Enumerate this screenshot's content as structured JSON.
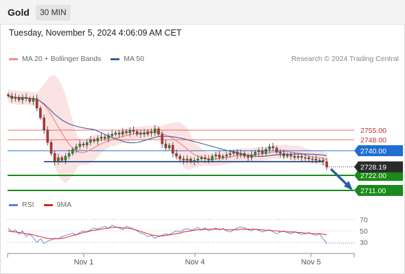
{
  "header": {
    "symbol": "Gold",
    "interval": "30 MIN"
  },
  "timestamp": "Tuesday, November 5, 2024 4:06:09 AM CET",
  "legend": {
    "ma20_label": "MA 20 + Bollinger Bands",
    "ma50_label": "MA 50",
    "ma20_color": "#f08a8a",
    "ma50_color": "#3a5f96",
    "credit": "Research © 2024 Trading Central"
  },
  "rsi_legend": {
    "rsi_label": "RSI",
    "ma_label": "9MA",
    "rsi_color": "#5b7fd6",
    "ma_color": "#e02020"
  },
  "chart_data": [
    {
      "type": "candlestick",
      "x_ticks": [
        "Nov 1",
        "Nov 4",
        "Nov 5"
      ],
      "y_range": [
        2705,
        2800
      ],
      "last_price": 2728.19,
      "levels": [
        {
          "label": "2755.00",
          "value": 2755.0,
          "role": "resistance",
          "color": "#e03030"
        },
        {
          "label": "2748.00",
          "value": 2748.0,
          "role": "resistance",
          "color": "#e03030"
        },
        {
          "label": "2740.00",
          "value": 2740.0,
          "role": "pivot",
          "color": "#1f6fd1"
        },
        {
          "label": "2722.00",
          "value": 2722.0,
          "role": "target",
          "color": "#1a8a1a"
        },
        {
          "label": "2711.00",
          "value": 2711.0,
          "role": "target",
          "color": "#1a8a1a"
        }
      ],
      "last_price_label": "2728.19",
      "close": [
        2780,
        2778,
        2779,
        2777,
        2779,
        2778,
        2776,
        2778,
        2771,
        2764,
        2755,
        2746,
        2738,
        2732,
        2735,
        2733,
        2736,
        2738,
        2741,
        2743,
        2745,
        2744,
        2746,
        2748,
        2747,
        2749,
        2750,
        2749,
        2751,
        2752,
        2753,
        2752,
        2754,
        2753,
        2755,
        2754,
        2752,
        2753,
        2752,
        2754,
        2753,
        2756,
        2752,
        2745,
        2742,
        2744,
        2738,
        2736,
        2734,
        2733,
        2734,
        2732,
        2733,
        2734,
        2735,
        2734,
        2733,
        2736,
        2737,
        2735,
        2736,
        2737,
        2738,
        2739,
        2737,
        2738,
        2736,
        2735,
        2737,
        2739,
        2740,
        2738,
        2741,
        2743,
        2742,
        2739,
        2738,
        2736,
        2737,
        2736,
        2735,
        2736,
        2735,
        2735,
        2734,
        2734,
        2733,
        2733,
        2732,
        2728
      ]
    },
    {
      "type": "line",
      "name": "RSI",
      "y_ticks": [
        30,
        50,
        70
      ],
      "ylim": [
        20,
        80
      ],
      "x_ticks": [
        "Nov 1",
        "Nov 4",
        "Nov 5"
      ],
      "series": [
        {
          "name": "RSI",
          "values": [
            55,
            48,
            52,
            44,
            50,
            40,
            45,
            38,
            30,
            36,
            28,
            32,
            34,
            37,
            36,
            40,
            42,
            44,
            46,
            43,
            47,
            50,
            48,
            52,
            55,
            53,
            56,
            58,
            54,
            60,
            57,
            55,
            52,
            58,
            56,
            53,
            50,
            46,
            44,
            40,
            42,
            37,
            40,
            42,
            45,
            43,
            47,
            50,
            48,
            52,
            54,
            51,
            53,
            56,
            52,
            55,
            50,
            53,
            55,
            52,
            54,
            50,
            48,
            52,
            55,
            57,
            55,
            52,
            50,
            53,
            51,
            48,
            50,
            52,
            48,
            45,
            48,
            50,
            47,
            45,
            48,
            46,
            44,
            45,
            47,
            44,
            42,
            45,
            36,
            28
          ]
        },
        {
          "name": "9MA",
          "values": [
            50,
            49,
            48,
            47,
            46,
            45,
            44,
            43,
            41,
            40,
            38,
            37,
            36,
            36,
            36,
            37,
            38,
            40,
            42,
            43,
            45,
            47,
            48,
            50,
            51,
            52,
            53,
            54,
            55,
            56,
            56,
            56,
            55,
            55,
            54,
            53,
            51,
            49,
            47,
            45,
            43,
            42,
            41,
            41,
            42,
            43,
            44,
            45,
            46,
            48,
            49,
            50,
            51,
            52,
            52,
            53,
            53,
            53,
            53,
            53,
            53,
            52,
            52,
            52,
            52,
            53,
            53,
            53,
            53,
            53,
            52,
            52,
            51,
            51,
            50,
            50,
            49,
            49,
            48,
            48,
            48,
            47,
            47,
            46,
            46,
            45,
            45,
            45,
            44,
            43
          ]
        }
      ]
    }
  ]
}
